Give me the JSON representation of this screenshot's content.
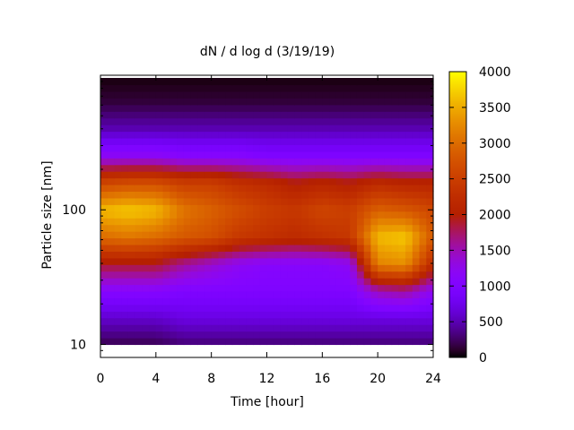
{
  "chart_data": {
    "type": "heatmap",
    "title": "dN / d log d (3/19/19)",
    "xlabel": "Time [hour]",
    "ylabel": "Particle size [nm]",
    "x_range": [
      0,
      24
    ],
    "x_ticks": [
      0,
      4,
      8,
      12,
      16,
      20,
      24
    ],
    "y_scale": "log",
    "y_range_nm": [
      8,
      1000
    ],
    "y_ticks": [
      10,
      100
    ],
    "colorbar": {
      "range": [
        0,
        4000
      ],
      "ticks": [
        0,
        500,
        1000,
        1500,
        2000,
        2500,
        3000,
        3500,
        4000
      ],
      "palette": "gnuplot"
    },
    "field": {
      "grid_rows_log10_size": [
        1.0,
        1.2,
        1.4,
        1.6,
        1.8,
        2.0,
        2.2,
        2.4,
        2.6,
        2.8,
        3.0
      ],
      "grid_cols_hour": [
        0,
        2,
        4,
        6,
        8,
        10,
        12,
        14,
        16,
        18,
        20,
        22,
        24
      ],
      "values": [
        [
          200,
          200,
          200,
          300,
          300,
          300,
          300,
          300,
          300,
          300,
          300,
          300,
          300
        ],
        [
          600,
          600,
          600,
          700,
          700,
          700,
          700,
          700,
          700,
          700,
          700,
          700,
          700
        ],
        [
          1100,
          1100,
          1100,
          1000,
          1000,
          1000,
          1000,
          1000,
          1000,
          1000,
          1500,
          1600,
          1200
        ],
        [
          1900,
          1900,
          1900,
          1600,
          1400,
          1200,
          1100,
          1100,
          1100,
          1200,
          3200,
          3300,
          2200
        ],
        [
          3000,
          3100,
          3000,
          2800,
          2700,
          2400,
          2300,
          2200,
          2300,
          2400,
          3600,
          3700,
          2800
        ],
        [
          3600,
          3700,
          3600,
          3100,
          2900,
          2700,
          2500,
          2400,
          2600,
          2500,
          2900,
          2800,
          2600
        ],
        [
          2600,
          2700,
          2700,
          2500,
          2500,
          2300,
          2200,
          2000,
          2100,
          2000,
          2200,
          2100,
          2100
        ],
        [
          1200,
          1200,
          1200,
          1100,
          1100,
          1100,
          1000,
          1000,
          1000,
          1000,
          1000,
          1000,
          1000
        ],
        [
          500,
          500,
          500,
          500,
          500,
          500,
          500,
          500,
          500,
          500,
          500,
          500,
          500
        ],
        [
          150,
          150,
          150,
          150,
          150,
          150,
          150,
          150,
          150,
          150,
          150,
          150,
          150
        ],
        [
          20,
          20,
          20,
          20,
          20,
          20,
          20,
          20,
          20,
          20,
          20,
          20,
          20
        ]
      ]
    }
  }
}
